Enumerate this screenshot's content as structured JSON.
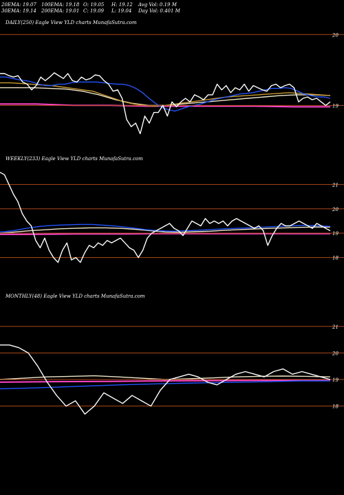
{
  "header": {
    "row1": [
      "20EMA: 19.07",
      "100EMA: 19.18",
      "O: 19.05",
      "H: 19.12",
      "Avg Vol: 0.19 M"
    ],
    "row2": [
      "30EMA: 19.14",
      "200EMA: 19.01",
      "C: 19.09",
      "L: 19.04",
      "Day Vol: 0.401 M"
    ]
  },
  "colors": {
    "background": "#000000",
    "price": "#ffffff",
    "ema_blue": "#2255ff",
    "ema_gold": "#c89a30",
    "ema_light": "#f0e6c8",
    "ema_magenta": "#ff44cc",
    "gridline": "#b0481a"
  },
  "chart_data": [
    {
      "type": "line",
      "title": "DAILY(250) Eagle  View YLD charts MunafaSutra.com",
      "ylim": [
        18.45,
        20.1
      ],
      "yticks": [
        {
          "v": 20,
          "label": "20"
        },
        {
          "v": 19,
          "label": "19"
        }
      ],
      "grid": true,
      "series": [
        {
          "role": "price",
          "values": [
            19.45,
            19.45,
            19.42,
            19.4,
            19.42,
            19.33,
            19.3,
            19.22,
            19.28,
            19.4,
            19.35,
            19.4,
            19.46,
            19.42,
            19.38,
            19.45,
            19.35,
            19.33,
            19.4,
            19.36,
            19.38,
            19.43,
            19.42,
            19.35,
            19.3,
            19.2,
            19.22,
            19.1,
            18.8,
            18.7,
            18.75,
            18.6,
            18.85,
            18.75,
            18.9,
            18.9,
            19.0,
            18.85,
            19.05,
            18.98,
            19.05,
            19.1,
            19.05,
            19.15,
            19.12,
            19.08,
            19.15,
            19.15,
            19.3,
            19.22,
            19.28,
            19.18,
            19.25,
            19.22,
            19.3,
            19.2,
            19.28,
            19.25,
            19.22,
            19.2,
            19.28,
            19.3,
            19.25,
            19.28,
            19.3,
            19.25,
            19.05,
            19.1,
            19.12,
            19.08,
            19.1,
            19.05,
            19.0,
            19.05
          ]
        },
        {
          "role": "ema",
          "color": "#2255ff",
          "values": [
            19.4,
            19.4,
            19.38,
            19.36,
            19.35,
            19.33,
            19.3,
            19.28,
            19.28,
            19.3,
            19.3,
            19.32,
            19.33,
            19.33,
            19.33,
            19.33,
            19.32,
            19.31,
            19.3,
            19.3,
            19.28,
            19.24,
            19.18,
            19.1,
            19.03,
            18.97,
            18.94,
            18.92,
            18.95,
            18.98,
            19.0,
            19.02,
            19.05,
            19.08,
            19.1,
            19.12,
            19.14,
            19.16,
            19.17,
            19.18,
            19.2,
            19.22,
            19.24,
            19.24,
            19.25,
            19.24,
            19.2,
            19.16,
            19.14,
            19.12,
            19.12,
            19.1
          ]
        },
        {
          "role": "ema",
          "color": "#c89a30",
          "values": [
            19.32,
            19.32,
            19.31,
            19.3,
            19.29,
            19.28,
            19.26,
            19.24,
            19.22,
            19.2,
            19.15,
            19.1,
            19.05,
            19.02,
            19.0,
            18.99,
            19.0,
            19.02,
            19.04,
            19.06,
            19.08,
            19.1,
            19.12,
            19.13,
            19.14,
            19.15,
            19.16,
            19.17,
            19.18,
            19.17,
            19.16,
            19.15,
            19.14
          ]
        },
        {
          "role": "ema",
          "color": "#f0e6c8",
          "values": [
            19.25,
            19.25,
            19.25,
            19.24,
            19.23,
            19.2,
            19.15,
            19.08,
            19.03,
            19.0,
            19.0,
            19.02,
            19.04,
            19.06,
            19.08,
            19.1,
            19.12,
            19.14,
            19.15,
            19.15,
            19.14
          ]
        },
        {
          "role": "ema",
          "color": "#ff44cc",
          "values": [
            19.02,
            19.02,
            19.0,
            19.0,
            18.99,
            18.99,
            18.99,
            18.99,
            18.98,
            18.98
          ]
        }
      ]
    },
    {
      "type": "line",
      "title": "WEEKLY(233) Eagle  View YLD charts MunafaSutra.com",
      "ylim": [
        17.0,
        21.8
      ],
      "yticks": [
        {
          "v": 21,
          "label": "21"
        },
        {
          "v": 20,
          "label": "20"
        },
        {
          "v": 19,
          "label": "19"
        },
        {
          "v": 18,
          "label": "18"
        }
      ],
      "grid": true,
      "series": [
        {
          "role": "price",
          "values": [
            21.5,
            21.4,
            21.0,
            20.6,
            20.3,
            19.8,
            19.5,
            19.3,
            18.7,
            18.4,
            18.8,
            18.3,
            18.0,
            17.8,
            18.3,
            18.6,
            17.9,
            18.0,
            17.8,
            18.2,
            18.5,
            18.4,
            18.6,
            18.5,
            18.7,
            18.6,
            18.7,
            18.8,
            18.6,
            18.4,
            18.3,
            18.0,
            18.3,
            18.8,
            19.0,
            19.1,
            19.2,
            19.3,
            19.4,
            19.2,
            19.1,
            18.9,
            19.2,
            19.5,
            19.4,
            19.3,
            19.6,
            19.4,
            19.5,
            19.4,
            19.5,
            19.3,
            19.5,
            19.6,
            19.5,
            19.4,
            19.3,
            19.2,
            19.3,
            19.1,
            18.5,
            18.9,
            19.2,
            19.4,
            19.3,
            19.3,
            19.4,
            19.5,
            19.4,
            19.3,
            19.2,
            19.4,
            19.3,
            19.2,
            19.1
          ]
        },
        {
          "role": "ema",
          "color": "#2255ff",
          "values": [
            19.05,
            19.1,
            19.2,
            19.28,
            19.32,
            19.34,
            19.36,
            19.36,
            19.32,
            19.28,
            19.22,
            19.15,
            19.1,
            19.08,
            19.1,
            19.12,
            19.15,
            19.18,
            19.2,
            19.22,
            19.25,
            19.28,
            19.3,
            19.32,
            19.3,
            19.28
          ]
        },
        {
          "role": "ema",
          "color": "#f0e6c8",
          "values": [
            19.0,
            19.05,
            19.1,
            19.14,
            19.18,
            19.2,
            19.22,
            19.22,
            19.2,
            19.16,
            19.1,
            19.05,
            19.04,
            19.06,
            19.08,
            19.12,
            19.15,
            19.17,
            19.2,
            19.22,
            19.24,
            19.25,
            19.25
          ]
        },
        {
          "role": "ema",
          "color": "#ff44cc",
          "values": [
            18.95,
            18.95,
            18.96,
            18.97,
            18.97,
            18.97,
            18.98,
            18.98,
            18.98,
            18.98,
            18.98,
            18.98,
            18.98,
            18.98
          ]
        }
      ]
    },
    {
      "type": "line",
      "title": "MONTHLY(48) Eagle  View YLD charts MunafaSutra.com",
      "ylim": [
        17.5,
        21.9
      ],
      "yticks": [
        {
          "v": 21,
          "label": "21"
        },
        {
          "v": 20,
          "label": "20"
        },
        {
          "v": 19,
          "label": "19"
        },
        {
          "v": 18,
          "label": "18"
        }
      ],
      "grid": true,
      "series": [
        {
          "role": "price",
          "values": [
            20.3,
            20.3,
            20.2,
            20.0,
            19.5,
            18.9,
            18.4,
            18.0,
            18.2,
            17.7,
            18.0,
            18.5,
            18.3,
            18.1,
            18.4,
            18.2,
            18.0,
            18.6,
            19.0,
            19.1,
            19.2,
            19.1,
            18.9,
            18.8,
            19.0,
            19.2,
            19.3,
            19.2,
            19.1,
            19.3,
            19.4,
            19.2,
            19.3,
            19.2,
            19.1,
            19.0
          ]
        },
        {
          "role": "ema",
          "color": "#2255ff",
          "values": [
            18.65,
            18.68,
            18.72,
            18.76,
            18.8,
            18.83,
            18.86,
            18.88,
            18.9,
            18.92,
            18.95,
            18.95
          ]
        },
        {
          "role": "ema",
          "color": "#ff44cc",
          "values": [
            18.9,
            18.92,
            18.93,
            18.95,
            18.96,
            18.97,
            18.98
          ]
        },
        {
          "role": "ema",
          "color": "#f0e6c8",
          "values": [
            19.0,
            19.05,
            19.1,
            19.12,
            19.14,
            19.1,
            19.05,
            19.0,
            19.03,
            19.06,
            19.1,
            19.12,
            19.13,
            19.12,
            19.1
          ]
        }
      ]
    }
  ]
}
